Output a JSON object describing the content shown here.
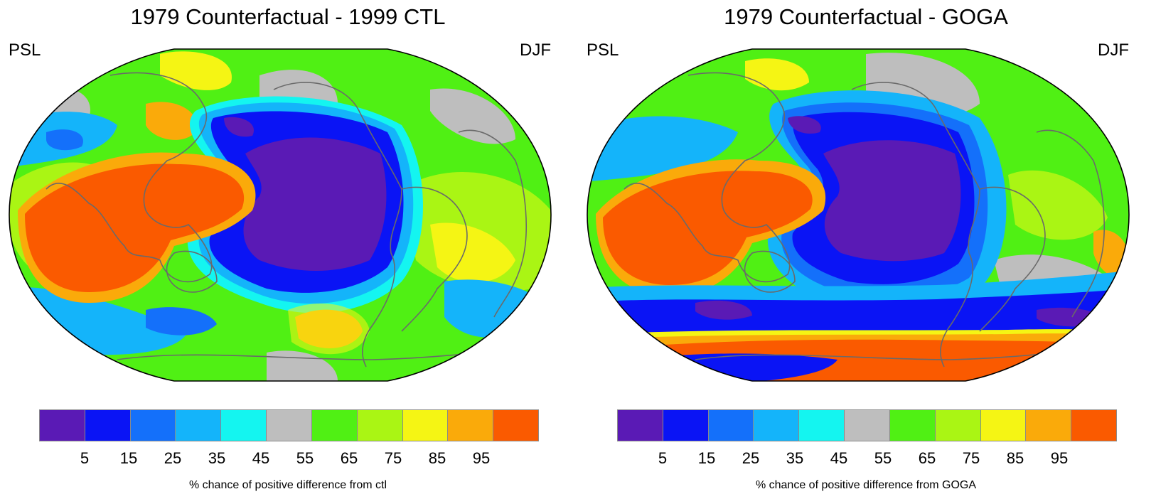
{
  "chart_data": [
    {
      "type": "heatmap",
      "title": "1979 Counterfactual - 1999 CTL",
      "variable": "PSL",
      "season": "DJF",
      "projection": "global map",
      "colorbar": {
        "tick_labels": [
          "5",
          "15",
          "25",
          "35",
          "45",
          "55",
          "65",
          "75",
          "85",
          "95"
        ],
        "colors": [
          "#5a1ab5",
          "#0a14f5",
          "#1470fa",
          "#14b4fa",
          "#14f5f0",
          "#bebebe",
          "#50f014",
          "#aaf514",
          "#f5f514",
          "#faaa0a",
          "#fa5a00"
        ],
        "label": "% chance of positive difference from ctl"
      }
    },
    {
      "type": "heatmap",
      "title": "1979 Counterfactual - GOGA",
      "variable": "PSL",
      "season": "DJF",
      "projection": "global map",
      "colorbar": {
        "tick_labels": [
          "5",
          "15",
          "25",
          "35",
          "45",
          "55",
          "65",
          "75",
          "85",
          "95"
        ],
        "colors": [
          "#5a1ab5",
          "#0a14f5",
          "#1470fa",
          "#14b4fa",
          "#14f5f0",
          "#bebebe",
          "#50f014",
          "#aaf514",
          "#f5f514",
          "#faaa0a",
          "#fa5a00"
        ],
        "label": "% chance of positive difference from GOGA"
      }
    }
  ]
}
